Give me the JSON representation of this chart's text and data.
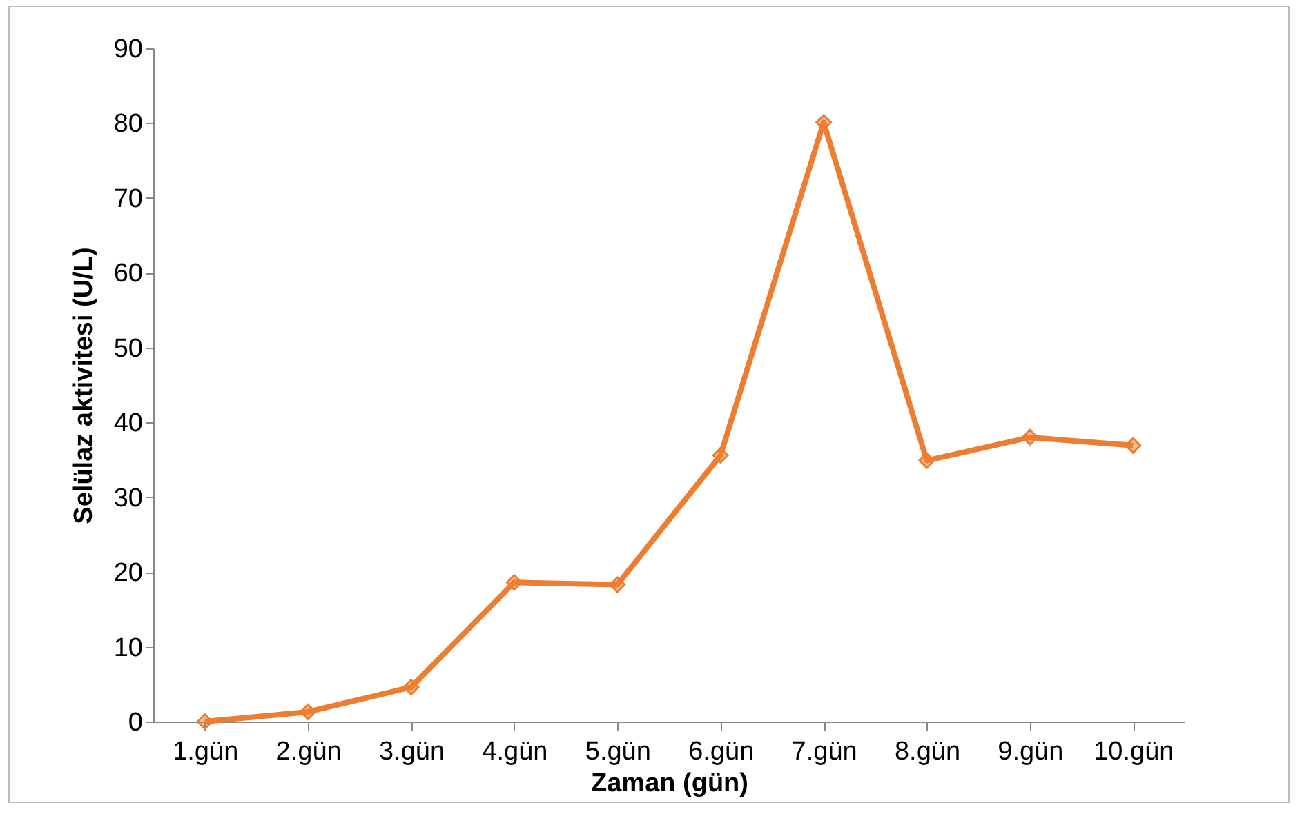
{
  "chart_data": {
    "type": "line",
    "xlabel": "Zaman (gün)",
    "ylabel": "Selülaz aktivitesi (U/L)",
    "categories": [
      "1.gün",
      "2.gün",
      "3.gün",
      "4.gün",
      "5.gün",
      "6.gün",
      "7.gün",
      "8.gün",
      "9.gün",
      "10.gün"
    ],
    "series": [
      {
        "color": "#ed7d31",
        "values": [
          0,
          1.3,
          4.6,
          18.6,
          18.3,
          35.6,
          80.1,
          34.9,
          38.0,
          36.9
        ]
      }
    ],
    "ylim": [
      0,
      90
    ],
    "yticks": [
      0,
      10,
      20,
      30,
      40,
      50,
      60,
      70,
      80,
      90
    ],
    "grid": false,
    "legend": false,
    "marker": "diamond",
    "line_style": "solid"
  }
}
